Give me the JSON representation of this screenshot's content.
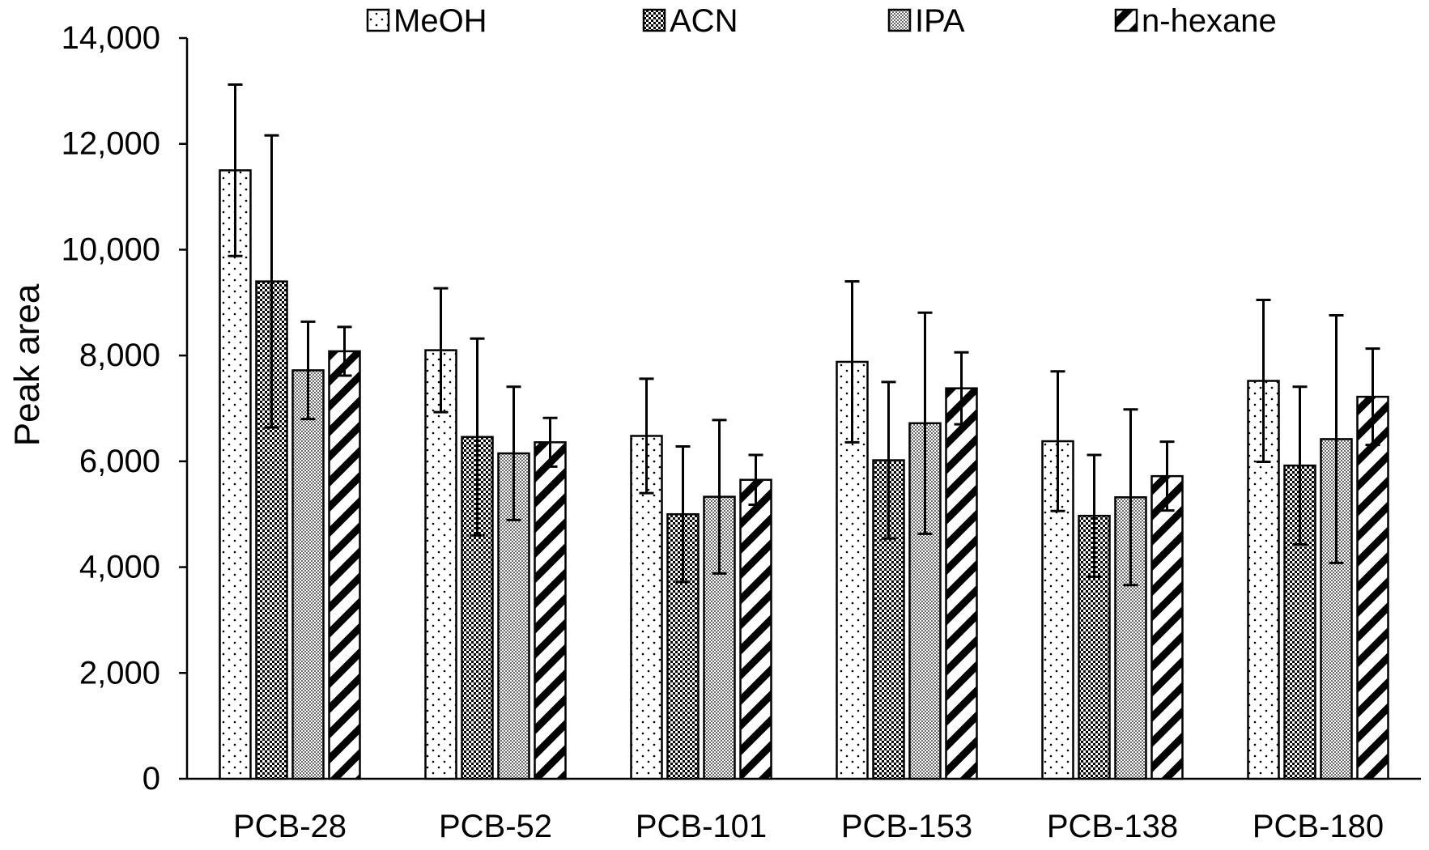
{
  "chart_data": {
    "type": "bar",
    "title": "",
    "xlabel": "",
    "ylabel": "Peak area",
    "ylim": [
      0,
      14000
    ],
    "yticks": [
      0,
      2000,
      4000,
      6000,
      8000,
      10000,
      12000,
      14000
    ],
    "ytick_labels": [
      "0",
      "2,000",
      "4,000",
      "6,000",
      "8,000",
      "10,000",
      "12,000",
      "14,000"
    ],
    "grid": false,
    "legend_position": "top",
    "categories": [
      "PCB-28",
      "PCB-52",
      "PCB-101",
      "PCB-153",
      "PCB-138",
      "PCB-180"
    ],
    "series": [
      {
        "name": "MeOH",
        "pattern": "dots",
        "values": [
          11500,
          8100,
          6480,
          7880,
          6380,
          7520
        ],
        "errors": [
          1620,
          1170,
          1080,
          1520,
          1320,
          1530
        ]
      },
      {
        "name": "ACN",
        "pattern": "dense-check",
        "values": [
          9400,
          6460,
          5000,
          6020,
          4970,
          5920
        ],
        "errors": [
          2760,
          1860,
          1280,
          1480,
          1150,
          1490
        ]
      },
      {
        "name": "IPA",
        "pattern": "fine-check",
        "values": [
          7720,
          6150,
          5330,
          6720,
          5320,
          6420
        ],
        "errors": [
          920,
          1260,
          1450,
          2090,
          1660,
          2340
        ]
      },
      {
        "name": "n-hexane",
        "pattern": "diagonal",
        "values": [
          8080,
          6360,
          5650,
          7380,
          5720,
          7220
        ],
        "errors": [
          460,
          460,
          470,
          680,
          650,
          910
        ]
      }
    ],
    "colors": {
      "fill": "#ffffff",
      "stroke": "#000000"
    }
  }
}
